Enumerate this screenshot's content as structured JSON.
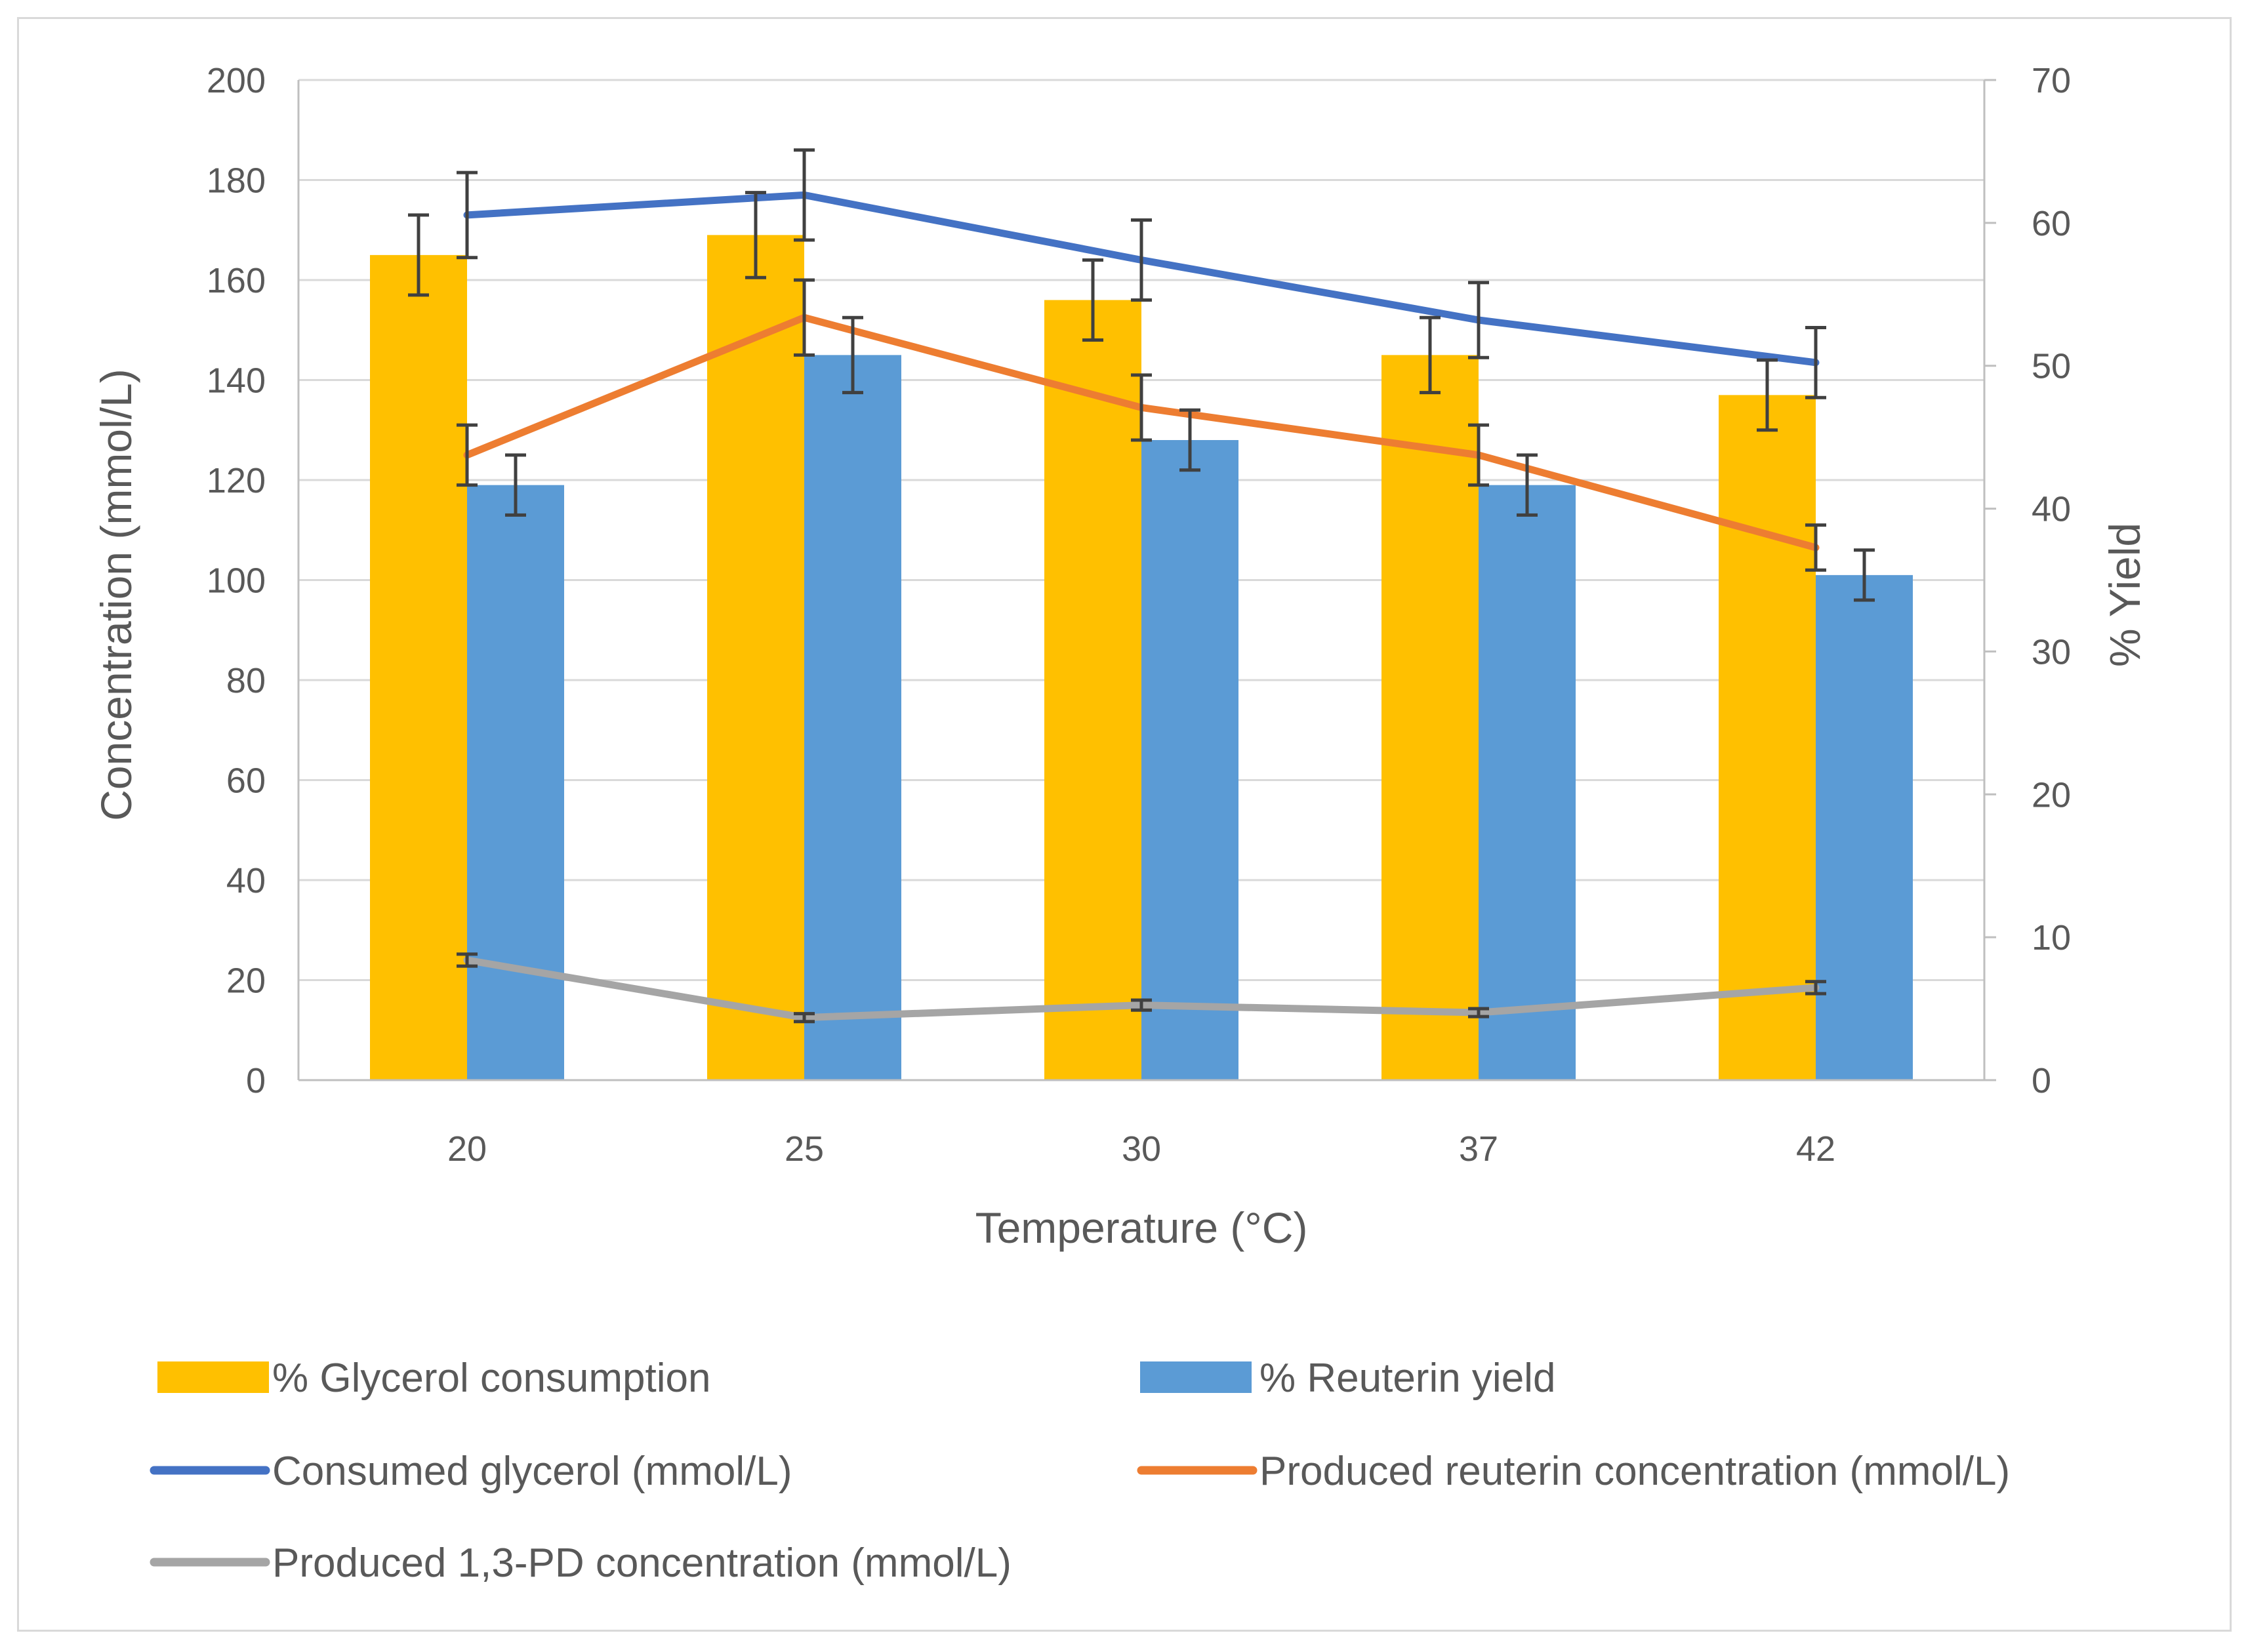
{
  "chart_data": {
    "type": "bar",
    "title": "",
    "xlabel": "Temperature (°C)",
    "ylabel": "Concentration (mmol/L)",
    "y2label": "% Yield",
    "categories": [
      "20",
      "25",
      "30",
      "37",
      "42"
    ],
    "ylim": [
      0,
      200
    ],
    "y2lim": [
      0,
      70
    ],
    "yticks": [
      "0",
      "20",
      "40",
      "60",
      "80",
      "100",
      "120",
      "140",
      "160",
      "180",
      "200"
    ],
    "y2ticks": [
      "0",
      "10",
      "20",
      "30",
      "40",
      "50",
      "60",
      "70"
    ],
    "bar_series": [
      {
        "name": "% Glycerol consumption",
        "color": "#FFC000",
        "axis": "y",
        "values": [
          165,
          169,
          156,
          145,
          137
        ],
        "errors": [
          8,
          8.5,
          8,
          7.5,
          7
        ]
      },
      {
        "name": "% Reuterin yield",
        "color": "#5B9BD5",
        "axis": "y",
        "values": [
          119,
          145,
          128,
          119,
          101
        ],
        "errors": [
          6,
          7.5,
          6,
          6,
          5
        ]
      }
    ],
    "line_series": [
      {
        "name": "Consumed glycerol (mmol/L)",
        "color": "#4472C4",
        "axis": "y",
        "values": [
          173,
          177,
          164,
          152,
          143.5
        ],
        "errors": [
          8.5,
          9,
          8,
          7.5,
          7
        ]
      },
      {
        "name": "Produced reuterin concentration (mmol/L)",
        "color": "#ED7D31",
        "axis": "y",
        "values": [
          125,
          152.5,
          134.5,
          125,
          106.5
        ],
        "errors": [
          6,
          7.5,
          6.5,
          6,
          4.5
        ]
      },
      {
        "name": "Produced 1,3-PD concentration (mmol/L)",
        "color": "#A5A5A5",
        "axis": "y",
        "values": [
          24,
          12.5,
          15,
          13.5,
          18.5
        ],
        "errors": [
          1.2,
          0.8,
          1,
          0.8,
          1.2
        ]
      }
    ],
    "legend": {
      "position": "bottom",
      "entries": [
        "% Glycerol consumption",
        "% Reuterin yield",
        "Consumed glycerol (mmol/L)",
        "Produced reuterin concentration (mmol/L)",
        "Produced 1,3-PD concentration (mmol/L)"
      ]
    },
    "grid": true
  }
}
